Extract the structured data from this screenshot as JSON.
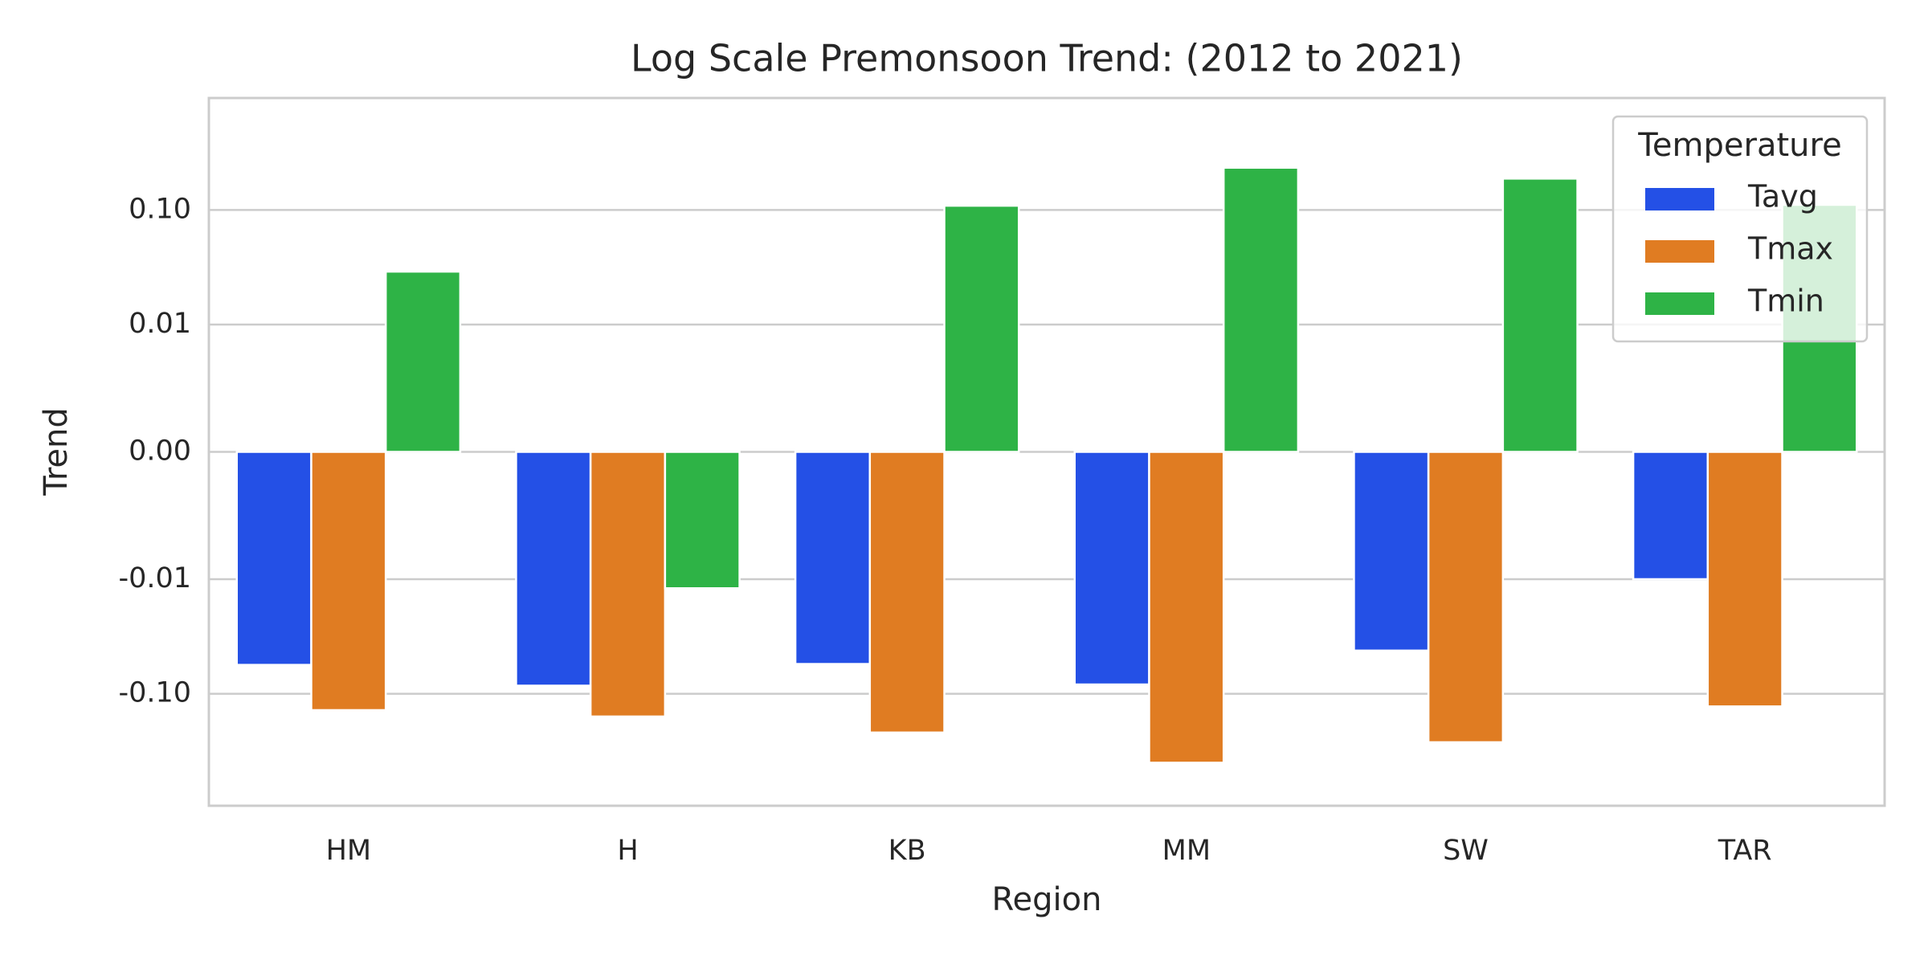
{
  "chart_data": {
    "type": "bar",
    "title": "Log Scale Premonsoon Trend: (2012 to 2021)",
    "x_label": "Region",
    "y_label": "Trend",
    "categories": [
      "HM",
      "H",
      "KB",
      "MM",
      "SW",
      "TAR"
    ],
    "series": [
      {
        "name": "Tavg",
        "color": "#2450e6",
        "values": [
          -0.056,
          -0.085,
          -0.055,
          -0.083,
          -0.042,
          -0.01
        ]
      },
      {
        "name": "Tmax",
        "color": "#e07c22",
        "values": [
          -0.139,
          -0.158,
          -0.218,
          -0.4,
          -0.265,
          -0.129
        ]
      },
      {
        "name": "Tmin",
        "color": "#2eb346",
        "values": [
          0.029,
          -0.012,
          0.109,
          0.234,
          0.188,
          0.111
        ]
      }
    ],
    "legend_title": "Temperature",
    "legend_position": "upper right",
    "yscale": "symlog",
    "linthresh": 0.01,
    "ylim": [
      -0.95,
      0.95
    ],
    "yticks": [
      {
        "value": -0.1,
        "label": "-0.10"
      },
      {
        "value": -0.01,
        "label": "-0.01"
      },
      {
        "value": 0,
        "label": "0.00"
      },
      {
        "value": 0.01,
        "label": "0.01"
      },
      {
        "value": 0.1,
        "label": "0.10"
      }
    ],
    "grid": true
  }
}
